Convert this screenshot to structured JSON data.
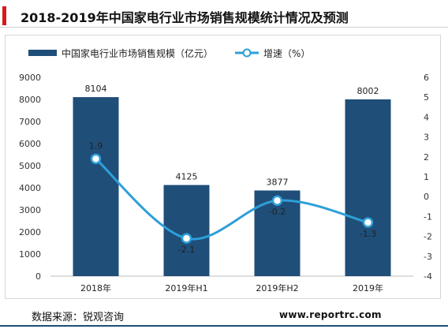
{
  "header": {
    "title": "2018-2019年中国家电行业市场销售规模统计情况及预测"
  },
  "footer": {
    "source": "数据来源：锐观咨询",
    "website": "www.reportrc.com"
  },
  "chart_data": {
    "type": "bar",
    "categories": [
      "2018年",
      "2019年H1",
      "2019年H2",
      "2019年"
    ],
    "series": [
      {
        "name": "中国家电行业市场销售规模（亿元）",
        "type": "bar",
        "axis": "left",
        "color": "#1f4e79",
        "values": [
          8104,
          4125,
          3877,
          8002
        ],
        "labels": [
          "8104",
          "4125",
          "3877",
          "8002"
        ]
      },
      {
        "name": "增速（%）",
        "type": "line",
        "axis": "right",
        "color": "#2e9fd8",
        "values": [
          1.9,
          -2.1,
          -0.2,
          -1.3
        ],
        "labels": [
          "1.9",
          "-2.1",
          "-0.2",
          "-1.3"
        ]
      }
    ],
    "y_left": {
      "ylim": [
        0,
        9000
      ],
      "ticks": [
        "0",
        "1000",
        "2000",
        "3000",
        "4000",
        "5000",
        "6000",
        "7000",
        "8000",
        "9000"
      ]
    },
    "y_right": {
      "ylim": [
        -4,
        6
      ],
      "ticks": [
        "-4",
        "-3",
        "-2",
        "-1",
        "0",
        "1",
        "2",
        "3",
        "4",
        "5",
        "6"
      ]
    },
    "grid": false,
    "legend": "top-left"
  }
}
